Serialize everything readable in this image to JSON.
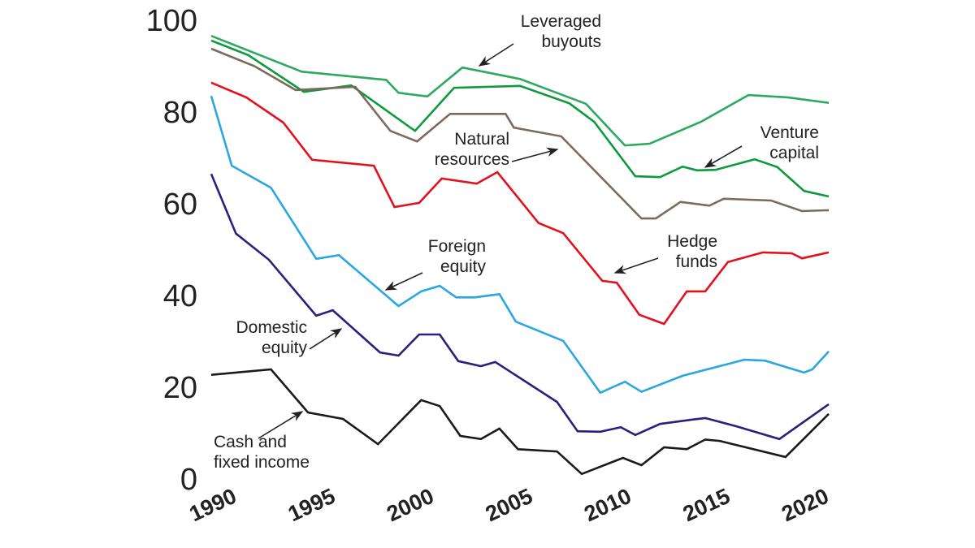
{
  "chart_data": {
    "type": "line",
    "title": "",
    "xlabel": "",
    "ylabel": "",
    "xlim": [
      1990,
      2020
    ],
    "ylim": [
      0,
      100
    ],
    "grid": false,
    "legend": "none (series labelled by arrow annotations)",
    "x_ticks": [
      "1990",
      "1995",
      "2000",
      "2005",
      "2010",
      "2015",
      "2020"
    ],
    "y_ticks": [
      "0",
      "20",
      "40",
      "60",
      "80",
      "100"
    ],
    "series": [
      {
        "name": "Leveraged buyouts",
        "label_lines": [
          "Leveraged",
          "buyouts"
        ],
        "color": "#2daa5f",
        "points": [
          [
            1990,
            96.6
          ],
          [
            1994.4,
            88.8
          ],
          [
            1998.5,
            87.0
          ],
          [
            1999.1,
            84.2
          ],
          [
            2000.5,
            83.4
          ],
          [
            2002.2,
            89.7
          ],
          [
            2005.0,
            87.2
          ],
          [
            2008.2,
            81.8
          ],
          [
            2010.1,
            72.7
          ],
          [
            2011.3,
            73.1
          ],
          [
            2013.8,
            77.9
          ],
          [
            2016.1,
            83.7
          ],
          [
            2018.0,
            83.2
          ],
          [
            2020,
            82.0
          ]
        ]
      },
      {
        "name": "Venture capital",
        "label_lines": [
          "Venture",
          "capital"
        ],
        "color": "#0c9a3c",
        "points": [
          [
            1990,
            95.6
          ],
          [
            1991.8,
            92.4
          ],
          [
            1994.5,
            84.4
          ],
          [
            1996.8,
            85.8
          ],
          [
            1999.9,
            75.9
          ],
          [
            2001.8,
            85.3
          ],
          [
            2005.0,
            85.7
          ],
          [
            2007.4,
            81.9
          ],
          [
            2008.6,
            77.9
          ],
          [
            2010.6,
            66.0
          ],
          [
            2011.8,
            65.8
          ],
          [
            2012.9,
            68.1
          ],
          [
            2013.6,
            67.3
          ],
          [
            2014.5,
            67.4
          ],
          [
            2016.4,
            69.7
          ],
          [
            2017.5,
            68.0
          ],
          [
            2018.8,
            62.8
          ],
          [
            2020,
            61.6
          ]
        ]
      },
      {
        "name": "Natural resources",
        "label_lines": [
          "Natural",
          "resources"
        ],
        "color": "#7b6b5c",
        "points": [
          [
            1990,
            93.8
          ],
          [
            1992.1,
            90.0
          ],
          [
            1994.1,
            84.8
          ],
          [
            1997.0,
            85.5
          ],
          [
            1998.7,
            75.9
          ],
          [
            2000.0,
            73.6
          ],
          [
            2001.6,
            79.6
          ],
          [
            2004.3,
            79.6
          ],
          [
            2004.7,
            76.6
          ],
          [
            2007.0,
            74.7
          ],
          [
            2010.9,
            56.8
          ],
          [
            2011.6,
            56.8
          ],
          [
            2012.8,
            60.4
          ],
          [
            2014.2,
            59.6
          ],
          [
            2014.9,
            61.1
          ],
          [
            2017.2,
            60.7
          ],
          [
            2018.7,
            58.4
          ],
          [
            2020,
            58.6
          ]
        ]
      },
      {
        "name": "Hedge funds",
        "label_lines": [
          "Hedge",
          "funds"
        ],
        "color": "#e3101e",
        "points": [
          [
            1990,
            86.4
          ],
          [
            1991.7,
            83.2
          ],
          [
            1993.5,
            77.7
          ],
          [
            1994.9,
            69.6
          ],
          [
            1997.9,
            68.3
          ],
          [
            1998.9,
            59.3
          ],
          [
            2000.1,
            60.2
          ],
          [
            2001.2,
            65.5
          ],
          [
            2002.9,
            64.4
          ],
          [
            2003.9,
            66.9
          ],
          [
            2005.9,
            55.8
          ],
          [
            2007.1,
            53.6
          ],
          [
            2009.0,
            43.2
          ],
          [
            2009.7,
            42.8
          ],
          [
            2010.8,
            35.8
          ],
          [
            2012.0,
            33.8
          ],
          [
            2013.1,
            40.9
          ],
          [
            2014.0,
            40.9
          ],
          [
            2015.1,
            47.3
          ],
          [
            2016.8,
            49.4
          ],
          [
            2018.2,
            49.2
          ],
          [
            2018.7,
            48.1
          ],
          [
            2020,
            49.4
          ]
        ]
      },
      {
        "name": "Foreign equity",
        "label_lines": [
          "Foreign",
          "equity"
        ],
        "color": "#2aa7e0",
        "points": [
          [
            1990,
            83.5
          ],
          [
            1991.0,
            68.3
          ],
          [
            1992.9,
            63.5
          ],
          [
            1995.1,
            48.0
          ],
          [
            1996.2,
            48.8
          ],
          [
            1999.1,
            37.7
          ],
          [
            2000.2,
            40.9
          ],
          [
            2001.1,
            42.1
          ],
          [
            2001.9,
            39.6
          ],
          [
            2002.8,
            39.6
          ],
          [
            2004.0,
            40.3
          ],
          [
            2004.8,
            34.3
          ],
          [
            2007.1,
            30.1
          ],
          [
            2008.9,
            18.8
          ],
          [
            2010.1,
            21.2
          ],
          [
            2010.9,
            19.0
          ],
          [
            2012.9,
            22.5
          ],
          [
            2015.9,
            26.0
          ],
          [
            2016.9,
            25.8
          ],
          [
            2018.8,
            23.2
          ],
          [
            2019.2,
            23.9
          ],
          [
            2020,
            27.8
          ]
        ]
      },
      {
        "name": "Domestic equity",
        "label_lines": [
          "Domestic",
          "equity"
        ],
        "color": "#2c1f7e",
        "points": [
          [
            1990,
            66.5
          ],
          [
            1991.2,
            53.5
          ],
          [
            1992.8,
            47.8
          ],
          [
            1995.1,
            35.6
          ],
          [
            1995.9,
            36.8
          ],
          [
            1998.2,
            27.6
          ],
          [
            1999.1,
            26.9
          ],
          [
            2000.1,
            31.5
          ],
          [
            2001.1,
            31.5
          ],
          [
            2002.0,
            25.7
          ],
          [
            2003.1,
            24.6
          ],
          [
            2003.8,
            25.5
          ],
          [
            2006.8,
            16.8
          ],
          [
            2007.8,
            10.4
          ],
          [
            2008.9,
            10.3
          ],
          [
            2009.9,
            11.3
          ],
          [
            2010.6,
            9.6
          ],
          [
            2011.8,
            12.0
          ],
          [
            2013.3,
            12.9
          ],
          [
            2014.0,
            13.3
          ],
          [
            2015.5,
            11.5
          ],
          [
            2017.6,
            8.7
          ],
          [
            2020,
            16.3
          ]
        ]
      },
      {
        "name": "Cash and fixed income",
        "label_lines": [
          "Cash and",
          "fixed income"
        ],
        "color": "#1a1a1a",
        "points": [
          [
            1990,
            22.7
          ],
          [
            1992.9,
            23.9
          ],
          [
            1994.7,
            14.5
          ],
          [
            1996.4,
            13.1
          ],
          [
            1998.1,
            7.6
          ],
          [
            2000.2,
            17.2
          ],
          [
            2001.1,
            15.9
          ],
          [
            2002.1,
            9.4
          ],
          [
            2003.1,
            8.7
          ],
          [
            2004.0,
            11.0
          ],
          [
            2004.9,
            6.5
          ],
          [
            2006.8,
            6.0
          ],
          [
            2008.0,
            1.1
          ],
          [
            2010.0,
            4.6
          ],
          [
            2010.9,
            3.0
          ],
          [
            2012.0,
            6.9
          ],
          [
            2013.1,
            6.5
          ],
          [
            2014.0,
            8.6
          ],
          [
            2014.7,
            8.3
          ],
          [
            2017.9,
            4.8
          ],
          [
            2020,
            14.2
          ]
        ]
      }
    ]
  }
}
